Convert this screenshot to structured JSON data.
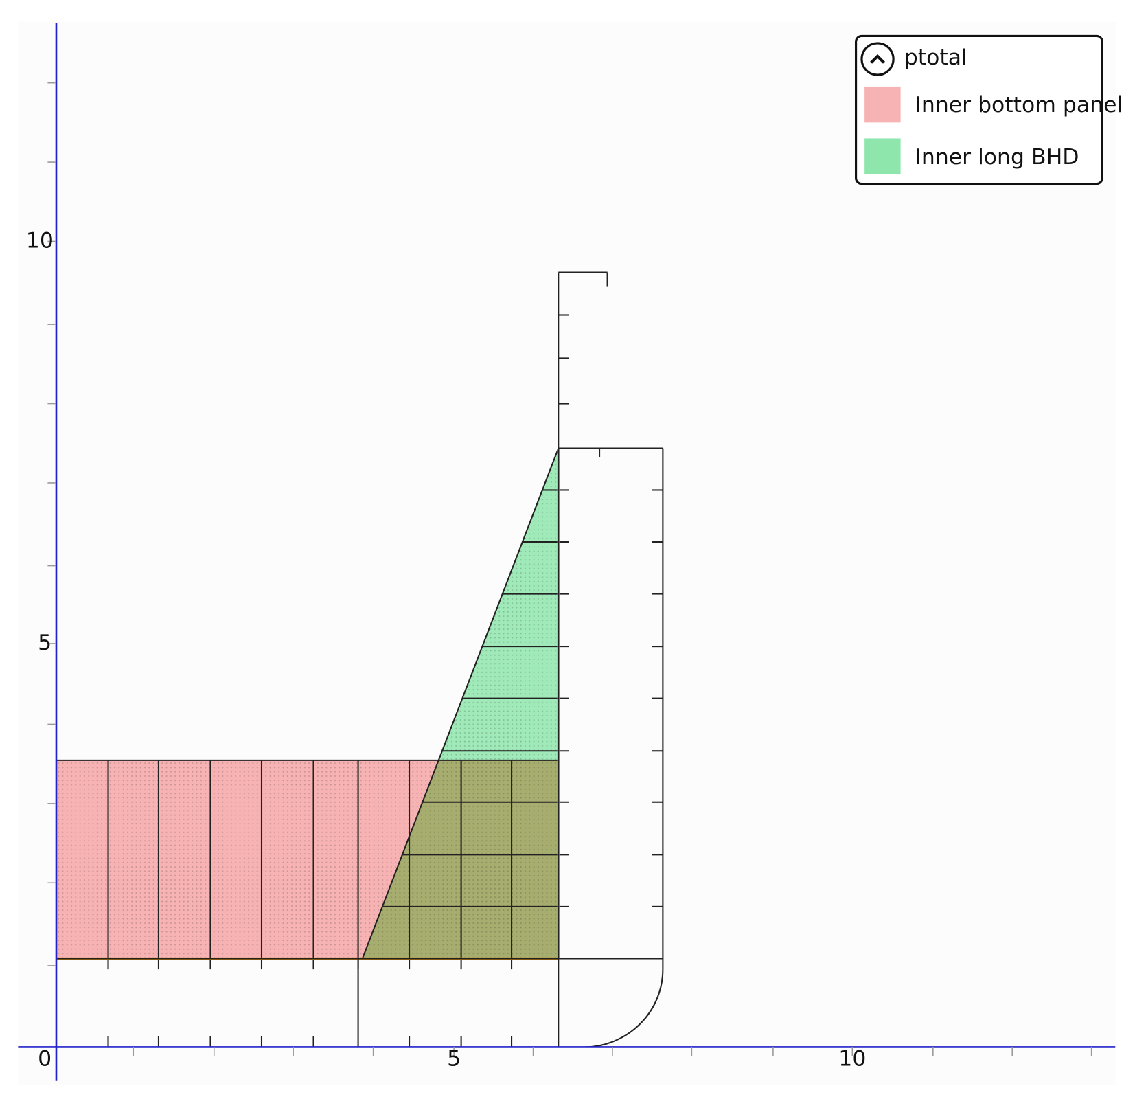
{
  "axes": {
    "x_tick_labels": [
      "0",
      "5",
      "10"
    ],
    "y_tick_labels": [
      "5",
      "10"
    ]
  },
  "legend": {
    "title": "ptotal",
    "items": [
      {
        "label": "Inner bottom panel",
        "color": "#f7b3b3"
      },
      {
        "label": "Inner long BHD",
        "color": "#8fe6ad"
      }
    ]
  }
}
